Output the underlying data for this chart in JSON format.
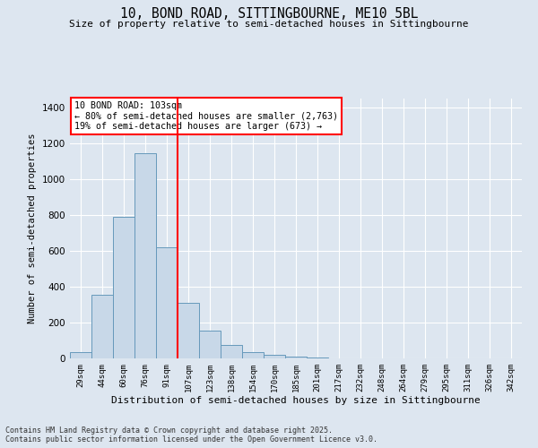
{
  "title_line1": "10, BOND ROAD, SITTINGBOURNE, ME10 5BL",
  "title_line2": "Size of property relative to semi-detached houses in Sittingbourne",
  "xlabel": "Distribution of semi-detached houses by size in Sittingbourne",
  "ylabel": "Number of semi-detached properties",
  "categories": [
    "29sqm",
    "44sqm",
    "60sqm",
    "76sqm",
    "91sqm",
    "107sqm",
    "123sqm",
    "138sqm",
    "154sqm",
    "170sqm",
    "185sqm",
    "201sqm",
    "217sqm",
    "232sqm",
    "248sqm",
    "264sqm",
    "279sqm",
    "295sqm",
    "311sqm",
    "326sqm",
    "342sqm"
  ],
  "values": [
    35,
    355,
    790,
    1145,
    620,
    310,
    155,
    75,
    35,
    20,
    8,
    3,
    0,
    0,
    0,
    0,
    0,
    0,
    0,
    0,
    0
  ],
  "bar_color": "#c8d8e8",
  "bar_edge_color": "#6699bb",
  "highlight_label": "10 BOND ROAD: 103sqm",
  "annotation_smaller": "← 80% of semi-detached houses are smaller (2,763)",
  "annotation_larger": "19% of semi-detached houses are larger (673) →",
  "annotation_box_color": "white",
  "annotation_box_edge_color": "red",
  "vline_color": "red",
  "vline_x": 4.5,
  "ylim": [
    0,
    1450
  ],
  "yticks": [
    0,
    200,
    400,
    600,
    800,
    1000,
    1200,
    1400
  ],
  "bg_color": "#dde6f0",
  "footer_line1": "Contains HM Land Registry data © Crown copyright and database right 2025.",
  "footer_line2": "Contains public sector information licensed under the Open Government Licence v3.0."
}
